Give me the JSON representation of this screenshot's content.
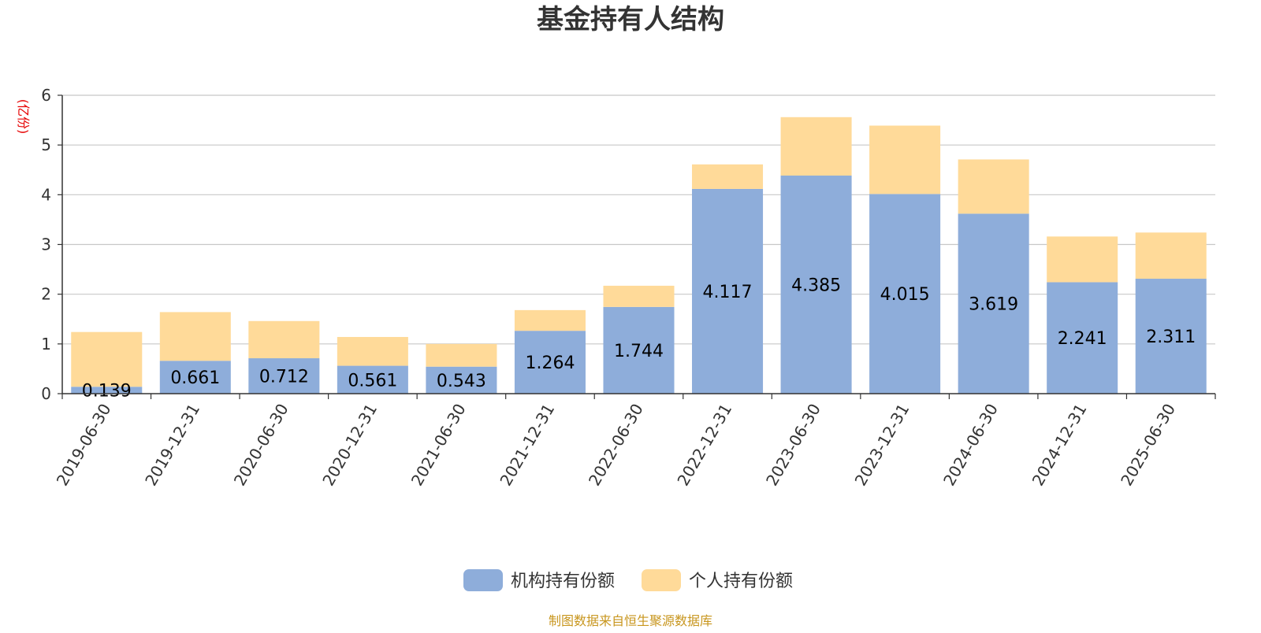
{
  "chart_data": {
    "type": "bar",
    "stacked": true,
    "title": "基金持有人结构",
    "unit_label": "(亿份)",
    "categories": [
      "2019-06-30",
      "2019-12-31",
      "2020-06-30",
      "2020-12-31",
      "2021-06-30",
      "2021-12-31",
      "2022-06-30",
      "2022-12-31",
      "2023-06-30",
      "2023-12-31",
      "2024-06-30",
      "2024-12-31",
      "2025-06-30"
    ],
    "series": [
      {
        "name": "机构持有份额",
        "color": "#8eadda",
        "values": [
          0.139,
          0.661,
          0.712,
          0.561,
          0.543,
          1.264,
          1.744,
          4.117,
          4.385,
          4.015,
          3.619,
          2.241,
          2.311
        ],
        "labels": [
          "0.139",
          "0.661",
          "0.712",
          "0.561",
          "0.543",
          "1.264",
          "1.744",
          "4.117",
          "4.385",
          "4.015",
          "3.619",
          "2.241",
          "2.311"
        ]
      },
      {
        "name": "个人持有份额",
        "color": "#ffda99",
        "values": [
          1.101,
          0.979,
          0.748,
          0.579,
          0.457,
          0.416,
          0.426,
          0.493,
          1.175,
          1.375,
          1.091,
          0.919,
          0.929
        ]
      }
    ],
    "ylim": [
      0,
      6
    ],
    "yticks": [
      "0",
      "1",
      "2",
      "3",
      "4",
      "5",
      "6"
    ],
    "grid": true,
    "legend_position": "bottom"
  },
  "footer": {
    "source": "制图数据来自恒生聚源数据库"
  }
}
